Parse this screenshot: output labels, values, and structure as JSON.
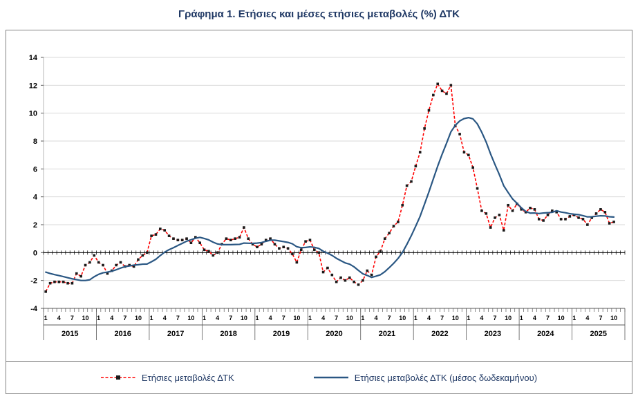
{
  "title": "Γράφημα 1. Ετήσιες και μέσες ετήσιες μεταβολές (%) ΔΤΚ",
  "chart_data": {
    "type": "line",
    "title": "Γράφημα 1. Ετήσιες και μέσες ετήσιες μεταβολές (%) ΔΤΚ",
    "ylabel": "",
    "xlabel": "",
    "ylim": [
      -4,
      14
    ],
    "y_ticks": [
      -4,
      -2,
      0,
      2,
      4,
      6,
      8,
      10,
      12,
      14
    ],
    "grid": true,
    "legend_position": "bottom",
    "x_months_labeled": [
      1,
      4,
      7,
      10
    ],
    "years": [
      "2015",
      "2016",
      "2017",
      "2018",
      "2019",
      "2020",
      "2021",
      "2022",
      "2023",
      "2024",
      "2025"
    ],
    "frequency": "monthly",
    "start": "2015-01",
    "end": "2025-10",
    "series": [
      {
        "name": "Ετήσιες μεταβολές ΔΤΚ",
        "style": "dashed",
        "color": "#ff0000",
        "marker": "square",
        "marker_color": "#1a1a1a",
        "values": [
          -2.8,
          -2.2,
          -2.1,
          -2.1,
          -2.1,
          -2.2,
          -2.2,
          -1.5,
          -1.7,
          -0.9,
          -0.7,
          -0.2,
          -0.7,
          -0.9,
          -1.5,
          -1.3,
          -0.9,
          -0.7,
          -1.0,
          -0.9,
          -1.0,
          -0.5,
          -0.2,
          0.0,
          1.2,
          1.3,
          1.7,
          1.6,
          1.2,
          1.0,
          0.9,
          0.9,
          1.0,
          0.7,
          1.1,
          0.7,
          0.2,
          0.1,
          -0.2,
          0.0,
          0.6,
          1.0,
          0.9,
          1.0,
          1.1,
          1.8,
          1.0,
          0.6,
          0.4,
          0.6,
          0.9,
          1.0,
          0.6,
          0.3,
          0.4,
          0.3,
          -0.1,
          -0.7,
          0.2,
          0.8,
          0.9,
          0.2,
          0.0,
          -1.4,
          -1.1,
          -1.6,
          -2.1,
          -1.8,
          -2.0,
          -1.8,
          -2.1,
          -2.3,
          -2.0,
          -1.3,
          -1.6,
          -0.3,
          0.1,
          1.0,
          1.4,
          1.9,
          2.2,
          3.4,
          4.8,
          5.1,
          6.2,
          7.2,
          8.9,
          10.2,
          11.3,
          12.1,
          11.6,
          11.4,
          12.0,
          9.1,
          8.5,
          7.2,
          7.0,
          6.1,
          4.6,
          3.0,
          2.8,
          1.8,
          2.5,
          2.7,
          1.6,
          3.4,
          3.0,
          3.5,
          3.1,
          2.9,
          3.2,
          3.1,
          2.4,
          2.3,
          2.7,
          3.0,
          2.9,
          2.4,
          2.4,
          2.6,
          2.7,
          2.5,
          2.4,
          2.0,
          2.5,
          2.8,
          3.1,
          2.9,
          2.1,
          2.2
        ]
      },
      {
        "name": "Ετήσιες μεταβολές ΔΤΚ (μέσος δωδεκαμήνου)",
        "style": "solid",
        "color": "#2a5783",
        "marker": "none",
        "values": [
          -1.4,
          -1.5,
          -1.58,
          -1.65,
          -1.72,
          -1.8,
          -1.88,
          -1.94,
          -2.0,
          -2.0,
          -1.95,
          -1.73,
          -1.56,
          -1.45,
          -1.4,
          -1.33,
          -1.23,
          -1.11,
          -1.01,
          -0.96,
          -0.9,
          -0.87,
          -0.83,
          -0.82,
          -0.66,
          -0.48,
          -0.21,
          0.03,
          0.21,
          0.35,
          0.51,
          0.66,
          0.82,
          0.92,
          1.03,
          1.09,
          1.01,
          0.91,
          0.75,
          0.62,
          0.57,
          0.57,
          0.57,
          0.58,
          0.59,
          0.68,
          0.67,
          0.66,
          0.68,
          0.72,
          0.81,
          0.89,
          0.89,
          0.84,
          0.79,
          0.73,
          0.63,
          0.42,
          0.35,
          0.37,
          0.41,
          0.38,
          0.3,
          0.1,
          -0.04,
          -0.2,
          -0.41,
          -0.58,
          -0.74,
          -0.83,
          -1.02,
          -1.28,
          -1.52,
          -1.64,
          -1.78,
          -1.69,
          -1.59,
          -1.37,
          -1.08,
          -0.77,
          -0.42,
          0.01,
          0.59,
          1.21,
          1.89,
          2.6,
          3.47,
          4.35,
          5.28,
          6.2,
          7.05,
          7.84,
          8.66,
          9.13,
          9.44,
          9.61,
          9.68,
          9.59,
          9.23,
          8.63,
          7.93,
          7.08,
          6.32,
          5.59,
          4.79,
          4.31,
          3.85,
          3.54,
          3.21,
          2.95,
          2.83,
          2.84,
          2.8,
          2.84,
          2.86,
          2.89,
          3.0,
          2.91,
          2.86,
          2.79,
          2.75,
          2.72,
          2.65,
          2.56,
          2.57,
          2.61,
          2.64,
          2.63,
          2.57,
          2.55
        ]
      }
    ],
    "colors": {
      "grid": "#d9d9d9",
      "axis": "#000000",
      "axis_secondary": "#595959",
      "title_text": "#1f3864"
    }
  }
}
